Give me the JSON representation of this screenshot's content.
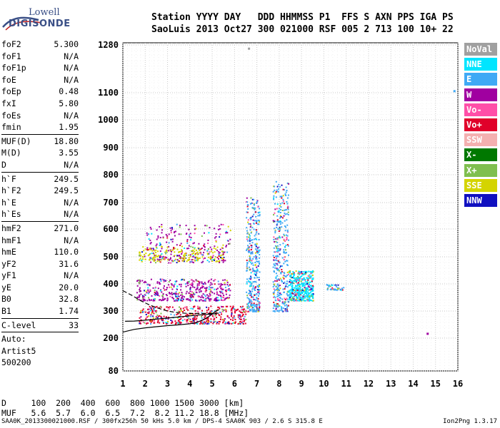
{
  "logo": {
    "line1": "Lowell",
    "line2": "DIGISONDE"
  },
  "header": {
    "line1": "Station YYYY DAY   DDD HHMMSS P1  FFS S AXN PPS IGA PS",
    "line2": "SaoLuis 2013 Oct27 300 021000 RSF 005 2 713 100 10+ 22"
  },
  "params": [
    {
      "type": "pair",
      "name": "foF2",
      "value": "5.300"
    },
    {
      "type": "pair",
      "name": "foF1",
      "value": "N/A"
    },
    {
      "type": "pair",
      "name": "foF1p",
      "value": "N/A"
    },
    {
      "type": "pair",
      "name": "foE",
      "value": "N/A"
    },
    {
      "type": "pair",
      "name": "foEp",
      "value": "0.48"
    },
    {
      "type": "pair",
      "name": "fxI",
      "value": "5.80"
    },
    {
      "type": "pair",
      "name": "foEs",
      "value": "N/A"
    },
    {
      "type": "pair",
      "name": "fmin",
      "value": "1.95"
    },
    {
      "type": "sep"
    },
    {
      "type": "pair",
      "name": "MUF(D)",
      "value": "18.80"
    },
    {
      "type": "pair",
      "name": "M(D)",
      "value": "3.55"
    },
    {
      "type": "pair",
      "name": "D",
      "value": "N/A"
    },
    {
      "type": "sep"
    },
    {
      "type": "pair",
      "name": "h`F",
      "value": "249.5"
    },
    {
      "type": "pair",
      "name": "h`F2",
      "value": "249.5"
    },
    {
      "type": "pair",
      "name": "h`E",
      "value": "N/A"
    },
    {
      "type": "pair",
      "name": "h`Es",
      "value": "N/A"
    },
    {
      "type": "sep"
    },
    {
      "type": "pair",
      "name": "hmF2",
      "value": "271.0"
    },
    {
      "type": "pair",
      "name": "hmF1",
      "value": "N/A"
    },
    {
      "type": "pair",
      "name": "hmE",
      "value": "110.0"
    },
    {
      "type": "pair",
      "name": "yF2",
      "value": "31.6"
    },
    {
      "type": "pair",
      "name": "yF1",
      "value": "N/A"
    },
    {
      "type": "pair",
      "name": "yE",
      "value": "20.0"
    },
    {
      "type": "pair",
      "name": "B0",
      "value": "32.8"
    },
    {
      "type": "pair",
      "name": "B1",
      "value": "1.74"
    },
    {
      "type": "sep"
    },
    {
      "type": "pair",
      "name": "C-level",
      "value": "33"
    },
    {
      "type": "sep"
    },
    {
      "type": "text",
      "name": "Auto:"
    },
    {
      "type": "text",
      "name": "Artist5"
    },
    {
      "type": "text",
      "name": "500200"
    }
  ],
  "legend": [
    {
      "label": "NoVal",
      "color": "#a0a0a0"
    },
    {
      "label": "NNE",
      "color": "#00e5ff"
    },
    {
      "label": "E",
      "color": "#3fa9f5"
    },
    {
      "label": "W",
      "color": "#a000a0"
    },
    {
      "label": "Vo-",
      "color": "#ff4fa8"
    },
    {
      "label": "Vo+",
      "color": "#e0002a"
    },
    {
      "label": "SSW",
      "color": "#f4b0b0"
    },
    {
      "label": "X-",
      "color": "#007800"
    },
    {
      "label": "X+",
      "color": "#7fbf4f"
    },
    {
      "label": "SSE",
      "color": "#d4d400"
    },
    {
      "label": "NNW",
      "color": "#1010c0"
    }
  ],
  "bottom": {
    "line1": "D     100  200  400  600  800 1000 1500 3000 [km]",
    "line2": "MUF   5.6  5.7  6.0  6.5  7.2  8.2 11.2 18.8 [MHz]"
  },
  "footer": "SAA0K_2013300021000.RSF / 300fx256h 50 kHs 5.0 km / DPS-4 SAA0K 903 / 2.6 S 315.8 E",
  "version": "Ion2Png 1.3.17",
  "chart_data": {
    "type": "scatter",
    "title": "",
    "xlabel": "",
    "ylabel": "",
    "x_ticks": [
      "1",
      "2",
      "3",
      "4",
      "5",
      "6",
      "7",
      "8",
      "9",
      "10",
      "11",
      "12",
      "13",
      "14",
      "15",
      "16"
    ],
    "y_ticks": [
      "80",
      "200",
      "300",
      "400",
      "500",
      "600",
      "700",
      "800",
      "900",
      "1000",
      "1100",
      "1280"
    ],
    "xlim": [
      1,
      16
    ],
    "y_scale_note": "quasi-log virtual height axis",
    "grid": true,
    "traces": [
      {
        "name": "",
        "style": "solid",
        "points": [
          [
            1.0,
            222
          ],
          [
            1.5,
            232
          ],
          [
            2,
            238
          ],
          [
            2.5,
            242
          ],
          [
            3,
            246
          ],
          [
            3.5,
            249
          ],
          [
            4,
            253
          ],
          [
            4.3,
            258
          ],
          [
            4.6,
            268
          ],
          [
            4.9,
            282
          ],
          [
            5.1,
            296
          ],
          [
            5.3,
            305
          ]
        ]
      },
      {
        "name": "",
        "style": "dashed",
        "points": [
          [
            1.0,
            375
          ],
          [
            1.4,
            358
          ],
          [
            1.8,
            338
          ],
          [
            2.2,
            322
          ],
          [
            2.6,
            310
          ],
          [
            3.0,
            300
          ],
          [
            3.5,
            293
          ],
          [
            4.0,
            291
          ],
          [
            4.5,
            291
          ],
          [
            5.0,
            291
          ],
          [
            5.3,
            292
          ]
        ]
      },
      {
        "name": "",
        "style": "solid",
        "points": [
          [
            1.1,
            262
          ],
          [
            1.5,
            263
          ],
          [
            2,
            266
          ],
          [
            2.5,
            270
          ],
          [
            3,
            274
          ],
          [
            3.5,
            278
          ],
          [
            4,
            282
          ],
          [
            4.5,
            286
          ],
          [
            5,
            289
          ],
          [
            5.2,
            290
          ]
        ]
      }
    ],
    "echo_clusters": [
      {
        "series": "W",
        "x_range": [
          1.6,
          5.8
        ],
        "y_range": [
          340,
          420
        ],
        "density": "high"
      },
      {
        "series": "Vo+",
        "x_range": [
          1.7,
          6.5
        ],
        "y_range": [
          255,
          320
        ],
        "density": "high"
      },
      {
        "series": "W",
        "x_range": [
          2.0,
          5.8
        ],
        "y_range": [
          480,
          620
        ],
        "density": "medium"
      },
      {
        "series": "SSE",
        "x_range": [
          1.7,
          5.5
        ],
        "y_range": [
          485,
          540
        ],
        "density": "medium"
      },
      {
        "series": "E",
        "x_range": [
          6.5,
          7.1
        ],
        "y_range": [
          300,
          720
        ],
        "density": "column"
      },
      {
        "series": "E",
        "x_range": [
          7.7,
          8.4
        ],
        "y_range": [
          300,
          780
        ],
        "density": "column"
      },
      {
        "series": "NNE",
        "x_range": [
          8.4,
          9.5
        ],
        "y_range": [
          340,
          450
        ],
        "density": "high"
      },
      {
        "series": "E",
        "x_range": [
          10.1,
          10.9
        ],
        "y_range": [
          380,
          400
        ],
        "density": "low"
      }
    ],
    "isolated_points": [
      {
        "series": "NoVal",
        "x": 6.6,
        "y": 1270
      },
      {
        "series": "W",
        "x": 14.6,
        "y": 220
      },
      {
        "series": "E",
        "x": 15.8,
        "y": 1110
      }
    ]
  }
}
